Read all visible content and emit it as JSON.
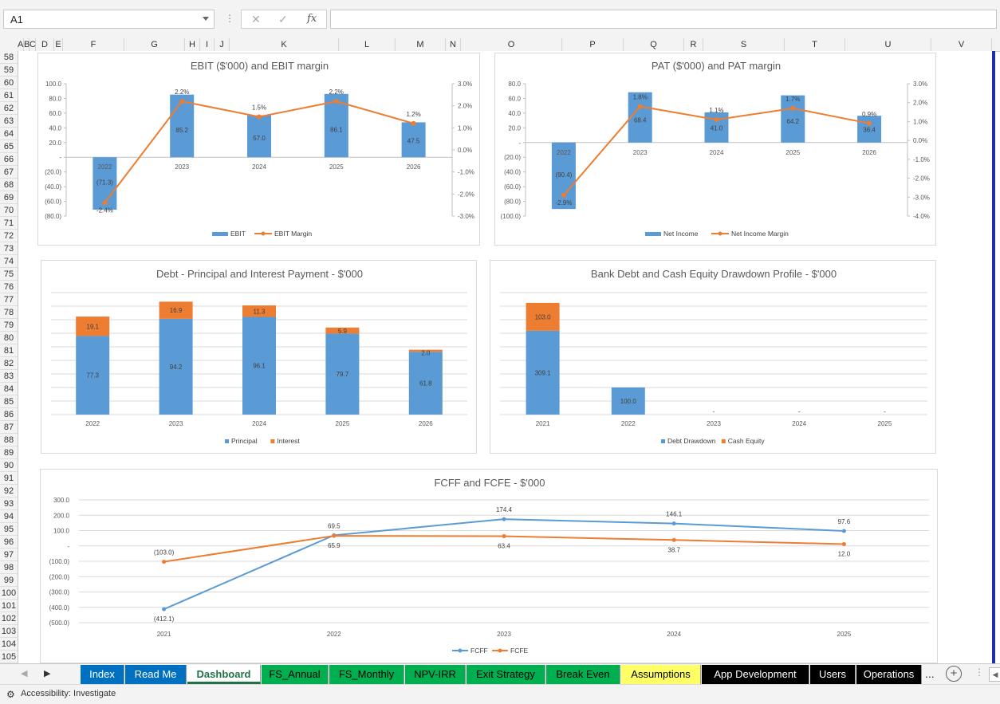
{
  "formula_bar": {
    "name_box": "A1",
    "fx_label": "fx",
    "more_dots": "⋮",
    "cancel_glyph": "✕",
    "enter_glyph": "✓",
    "formula_value": ""
  },
  "columns": [
    "A",
    "B",
    "C",
    "D",
    "E",
    "F",
    "G",
    "H",
    "I",
    "J",
    "K",
    "L",
    "M",
    "N",
    "O",
    "P",
    "Q",
    "R",
    "S",
    "T",
    "U",
    "V"
  ],
  "rows": [
    "58",
    "59",
    "60",
    "61",
    "62",
    "63",
    "64",
    "65",
    "66",
    "67",
    "68",
    "69",
    "70",
    "71",
    "72",
    "73",
    "74",
    "75",
    "76",
    "77",
    "78",
    "79",
    "80",
    "81",
    "82",
    "83",
    "84",
    "85",
    "86",
    "87",
    "88",
    "89",
    "90",
    "91",
    "92",
    "93",
    "94",
    "95",
    "96",
    "97",
    "98",
    "99",
    "100",
    "101",
    "102",
    "103",
    "104",
    "105"
  ],
  "colors": {
    "blue": "#5b9bd5",
    "orange": "#ed7d31",
    "grid": "#d9d9d9",
    "tab_blue": "#0070c0",
    "tab_green": "#00b050",
    "tab_yellow": "#ffff66",
    "tab_black": "#000000"
  },
  "chart_data": [
    {
      "id": "ebit",
      "type": "bar",
      "title": "EBIT ($'000) and EBIT margin",
      "categories": [
        "2022",
        "2023",
        "2024",
        "2025",
        "2026"
      ],
      "series": [
        {
          "name": "EBIT",
          "kind": "bar",
          "values": [
            -71.3,
            85.2,
            57.0,
            86.1,
            47.5
          ],
          "labels": [
            "(71.3)",
            "85.2",
            "57.0",
            "86.1",
            "47.5"
          ]
        },
        {
          "name": "EBIT Margin",
          "kind": "line",
          "axis": "secondary",
          "values": [
            -2.4,
            2.2,
            1.5,
            2.2,
            1.2
          ],
          "labels": [
            "-2.4%",
            "2.2%",
            "1.5%",
            "2.2%",
            "1.2%"
          ]
        }
      ],
      "ylim": [
        -80,
        100
      ],
      "yticks": [
        "(80.0)",
        "(60.0)",
        "(40.0)",
        "(20.0)",
        "-",
        "20.0",
        "40.0",
        "60.0",
        "80.0",
        "100.0"
      ],
      "y2lim": [
        -3,
        3
      ],
      "y2ticks": [
        "-3.0%",
        "-2.0%",
        "-1.0%",
        "0.0%",
        "1.0%",
        "2.0%",
        "3.0%"
      ],
      "legend": "bottom"
    },
    {
      "id": "pat",
      "type": "bar",
      "title": "PAT ($'000) and PAT margin",
      "categories": [
        "2022",
        "2023",
        "2024",
        "2025",
        "2026"
      ],
      "series": [
        {
          "name": "Net Income",
          "kind": "bar",
          "values": [
            -90.4,
            68.4,
            41.0,
            64.2,
            36.4
          ],
          "labels": [
            "(90.4)",
            "68.4",
            "41.0",
            "64.2",
            "36.4"
          ]
        },
        {
          "name": "Net Income Margin",
          "kind": "line",
          "axis": "secondary",
          "values": [
            -2.9,
            1.8,
            1.1,
            1.7,
            0.9
          ],
          "labels": [
            "-2.9%",
            "1.8%",
            "1.1%",
            "1.7%",
            "0.9%"
          ]
        }
      ],
      "ylim": [
        -100,
        80
      ],
      "yticks": [
        "(100.0)",
        "(80.0)",
        "(60.0)",
        "(40.0)",
        "(20.0)",
        "-",
        "20.0",
        "40.0",
        "60.0",
        "80.0"
      ],
      "y2lim": [
        -4,
        3
      ],
      "y2ticks": [
        "-4.0%",
        "-3.0%",
        "-2.0%",
        "-1.0%",
        "0.0%",
        "1.0%",
        "2.0%",
        "3.0%"
      ],
      "legend": "bottom"
    },
    {
      "id": "debt",
      "type": "bar",
      "stacked": true,
      "title": "Debt - Principal and Interest Payment - $'000",
      "categories": [
        "2022",
        "2023",
        "2024",
        "2025",
        "2026"
      ],
      "series": [
        {
          "name": "Principal",
          "values": [
            77.3,
            94.2,
            96.1,
            79.7,
            61.8
          ],
          "labels": [
            "77.3",
            "94.2",
            "96.1",
            "79.7",
            "61.8"
          ]
        },
        {
          "name": "Interest",
          "values": [
            19.1,
            16.9,
            11.3,
            5.9,
            2.0
          ],
          "labels": [
            "19.1",
            "16.9",
            "11.3",
            "5.9",
            "2.0"
          ]
        }
      ],
      "ylim": [
        0,
        120
      ],
      "grid": true,
      "legend": "bottom"
    },
    {
      "id": "bank",
      "type": "bar",
      "stacked": true,
      "title": "Bank Debt and Cash Equity Drawdown Profile - $'000",
      "categories": [
        "2021",
        "2022",
        "2023",
        "2024",
        "2025"
      ],
      "series": [
        {
          "name": "Debt Drawdown",
          "values": [
            309.1,
            100.0,
            0,
            0,
            0
          ],
          "labels": [
            "309.1",
            "100.0",
            "",
            "",
            ""
          ]
        },
        {
          "name": "Cash Equity",
          "values": [
            103.0,
            0,
            0,
            0,
            0
          ],
          "labels": [
            "103.0",
            "",
            "",
            "",
            ""
          ]
        }
      ],
      "ylim": [
        0,
        450
      ],
      "grid": true,
      "legend": "bottom"
    },
    {
      "id": "fcf",
      "type": "line",
      "title": "FCFF and FCFE - $'000",
      "categories": [
        "2021",
        "2022",
        "2023",
        "2024",
        "2025"
      ],
      "series": [
        {
          "name": "FCFF",
          "values": [
            -412.1,
            69.5,
            174.4,
            146.1,
            97.6
          ],
          "labels": [
            "(412.1)",
            "69.5",
            "174.4",
            "146.1",
            "97.6"
          ]
        },
        {
          "name": "FCFE",
          "values": [
            -103.0,
            65.9,
            63.4,
            38.7,
            12.0
          ],
          "labels": [
            "(103.0)",
            "65.9",
            "63.4",
            "38.7",
            "12.0"
          ]
        }
      ],
      "ylim": [
        -500,
        300
      ],
      "yticks": [
        "(500.0)",
        "(400.0)",
        "(300.0)",
        "(200.0)",
        "(100.0)",
        "-",
        "100.0",
        "200.0",
        "300.0"
      ],
      "grid": true,
      "legend": "bottom"
    }
  ],
  "tabs": [
    {
      "label": "Index",
      "style": "blue"
    },
    {
      "label": "Read Me",
      "style": "blue"
    },
    {
      "label": "Dashboard",
      "style": "active"
    },
    {
      "label": "FS_Annual",
      "style": "green"
    },
    {
      "label": "FS_Monthly",
      "style": "green"
    },
    {
      "label": "NPV-IRR",
      "style": "green"
    },
    {
      "label": "Exit Strategy",
      "style": "green"
    },
    {
      "label": "Break Even",
      "style": "green"
    },
    {
      "label": "Assumptions",
      "style": "yellow"
    },
    {
      "label": "App Development",
      "style": "black"
    },
    {
      "label": "Users",
      "style": "black"
    },
    {
      "label": "Operations",
      "style": "black"
    }
  ],
  "tab_overflow": "...",
  "status": {
    "accessibility": "Accessibility: Investigate"
  }
}
